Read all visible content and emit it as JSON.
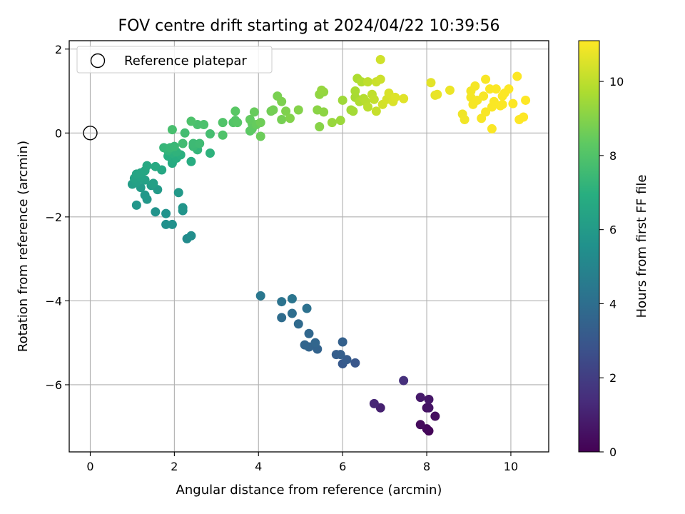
{
  "chart_data": {
    "type": "scatter",
    "title": "FOV centre drift starting at 2024/04/22 10:39:56",
    "xlabel": "Angular distance from reference (arcmin)",
    "ylabel": "Rotation from reference (arcmin)",
    "xlim": [
      -0.5,
      10.9
    ],
    "ylim": [
      -7.6,
      2.2
    ],
    "xticks": [
      0,
      2,
      4,
      6,
      8,
      10
    ],
    "yticks": [
      2,
      0,
      -2,
      -4,
      -6
    ],
    "grid": true,
    "legend": {
      "placement": "top-left",
      "label": "Reference platepar"
    },
    "reference_point": {
      "x": 0,
      "y": 0
    },
    "colorbar": {
      "label": "Hours from first FF file",
      "colormap": "viridis",
      "range": [
        0,
        11.1
      ],
      "ticks": [
        0,
        2,
        4,
        6,
        8,
        10
      ]
    },
    "series": [
      {
        "points": [
          {
            "x": 8.05,
            "y": -7.1,
            "c": 0.1
          },
          {
            "x": 8.0,
            "y": -7.05,
            "c": 0.2
          },
          {
            "x": 7.85,
            "y": -6.95,
            "c": 0.3
          },
          {
            "x": 8.2,
            "y": -6.75,
            "c": 0.4
          },
          {
            "x": 8.0,
            "y": -6.55,
            "c": 0.5
          },
          {
            "x": 8.05,
            "y": -6.55,
            "c": 0.6
          },
          {
            "x": 8.05,
            "y": -6.35,
            "c": 0.7
          },
          {
            "x": 7.85,
            "y": -6.3,
            "c": 0.8
          },
          {
            "x": 6.9,
            "y": -6.55,
            "c": 1.0
          },
          {
            "x": 6.75,
            "y": -6.45,
            "c": 1.2
          },
          {
            "x": 7.45,
            "y": -5.9,
            "c": 1.5
          },
          {
            "x": 6.3,
            "y": -5.48,
            "c": 3.0
          },
          {
            "x": 6.0,
            "y": -5.5,
            "c": 3.1
          },
          {
            "x": 6.1,
            "y": -5.4,
            "c": 3.2
          },
          {
            "x": 5.85,
            "y": -5.28,
            "c": 3.3
          },
          {
            "x": 5.95,
            "y": -5.28,
            "c": 3.35
          },
          {
            "x": 6.0,
            "y": -4.98,
            "c": 3.4
          },
          {
            "x": 5.4,
            "y": -5.15,
            "c": 3.5
          },
          {
            "x": 5.2,
            "y": -5.1,
            "c": 3.55
          },
          {
            "x": 5.1,
            "y": -5.05,
            "c": 3.6
          },
          {
            "x": 5.35,
            "y": -5.0,
            "c": 3.65
          },
          {
            "x": 5.2,
            "y": -4.78,
            "c": 3.7
          },
          {
            "x": 4.95,
            "y": -4.55,
            "c": 3.8
          },
          {
            "x": 4.55,
            "y": -4.4,
            "c": 3.9
          },
          {
            "x": 4.8,
            "y": -4.3,
            "c": 4.0
          },
          {
            "x": 5.15,
            "y": -4.18,
            "c": 4.1
          },
          {
            "x": 4.55,
            "y": -4.02,
            "c": 4.2
          },
          {
            "x": 4.8,
            "y": -3.95,
            "c": 4.3
          },
          {
            "x": 4.05,
            "y": -3.88,
            "c": 4.4
          },
          {
            "x": 2.3,
            "y": -2.52,
            "c": 5.3
          },
          {
            "x": 2.4,
            "y": -2.45,
            "c": 5.4
          },
          {
            "x": 1.8,
            "y": -2.18,
            "c": 5.5
          },
          {
            "x": 1.95,
            "y": -2.18,
            "c": 5.55
          },
          {
            "x": 1.8,
            "y": -1.92,
            "c": 5.6
          },
          {
            "x": 1.55,
            "y": -1.88,
            "c": 5.65
          },
          {
            "x": 2.2,
            "y": -1.85,
            "c": 5.7
          },
          {
            "x": 2.2,
            "y": -1.78,
            "c": 5.75
          },
          {
            "x": 1.1,
            "y": -1.72,
            "c": 5.8
          },
          {
            "x": 1.35,
            "y": -1.58,
            "c": 5.85
          },
          {
            "x": 1.3,
            "y": -1.48,
            "c": 5.9
          },
          {
            "x": 2.1,
            "y": -1.42,
            "c": 5.95
          },
          {
            "x": 1.6,
            "y": -1.35,
            "c": 6.0
          },
          {
            "x": 1.2,
            "y": -1.3,
            "c": 6.05
          },
          {
            "x": 1.45,
            "y": -1.25,
            "c": 6.1
          },
          {
            "x": 1.0,
            "y": -1.22,
            "c": 6.15
          },
          {
            "x": 1.5,
            "y": -1.2,
            "c": 6.2
          },
          {
            "x": 1.1,
            "y": -1.18,
            "c": 6.25
          },
          {
            "x": 1.3,
            "y": -1.12,
            "c": 6.3
          },
          {
            "x": 1.05,
            "y": -1.08,
            "c": 6.35
          },
          {
            "x": 1.2,
            "y": -1.05,
            "c": 6.4
          },
          {
            "x": 1.1,
            "y": -0.98,
            "c": 6.45
          },
          {
            "x": 1.2,
            "y": -0.95,
            "c": 6.5
          },
          {
            "x": 1.3,
            "y": -0.9,
            "c": 6.55
          },
          {
            "x": 1.7,
            "y": -0.88,
            "c": 6.6
          },
          {
            "x": 1.35,
            "y": -0.78,
            "c": 6.65
          },
          {
            "x": 1.55,
            "y": -0.8,
            "c": 6.7
          },
          {
            "x": 1.95,
            "y": -0.72,
            "c": 6.75
          },
          {
            "x": 1.95,
            "y": -0.65,
            "c": 6.8
          },
          {
            "x": 2.4,
            "y": -0.68,
            "c": 6.85
          },
          {
            "x": 2.05,
            "y": -0.6,
            "c": 6.9
          },
          {
            "x": 1.85,
            "y": -0.55,
            "c": 6.95
          },
          {
            "x": 2.15,
            "y": -0.52,
            "c": 7.0
          },
          {
            "x": 1.95,
            "y": -0.48,
            "c": 7.05
          },
          {
            "x": 2.85,
            "y": -0.48,
            "c": 7.1
          },
          {
            "x": 2.05,
            "y": -0.45,
            "c": 7.15
          },
          {
            "x": 1.85,
            "y": -0.42,
            "c": 7.2
          },
          {
            "x": 2.55,
            "y": -0.4,
            "c": 7.25
          },
          {
            "x": 1.75,
            "y": -0.35,
            "c": 7.3
          },
          {
            "x": 1.9,
            "y": -0.35,
            "c": 7.35
          },
          {
            "x": 2.0,
            "y": -0.32,
            "c": 7.4
          },
          {
            "x": 2.45,
            "y": -0.32,
            "c": 7.45
          },
          {
            "x": 2.45,
            "y": -0.25,
            "c": 7.5
          },
          {
            "x": 2.6,
            "y": -0.25,
            "c": 7.55
          },
          {
            "x": 2.2,
            "y": -0.25,
            "c": 7.6
          },
          {
            "x": 2.25,
            "y": 0.0,
            "c": 7.65
          },
          {
            "x": 2.85,
            "y": -0.02,
            "c": 7.7
          },
          {
            "x": 1.95,
            "y": 0.08,
            "c": 7.75
          },
          {
            "x": 2.55,
            "y": 0.2,
            "c": 7.8
          },
          {
            "x": 2.7,
            "y": 0.2,
            "c": 7.85
          },
          {
            "x": 2.4,
            "y": 0.28,
            "c": 7.9
          },
          {
            "x": 3.15,
            "y": -0.05,
            "c": 7.95
          },
          {
            "x": 3.15,
            "y": 0.25,
            "c": 8.0
          },
          {
            "x": 3.4,
            "y": 0.25,
            "c": 8.05
          },
          {
            "x": 3.45,
            "y": 0.3,
            "c": 8.1
          },
          {
            "x": 3.5,
            "y": 0.25,
            "c": 8.15
          },
          {
            "x": 3.45,
            "y": 0.52,
            "c": 8.2
          },
          {
            "x": 3.8,
            "y": 0.05,
            "c": 8.25
          },
          {
            "x": 3.85,
            "y": 0.1,
            "c": 8.3
          },
          {
            "x": 3.85,
            "y": 0.22,
            "c": 8.35
          },
          {
            "x": 3.8,
            "y": 0.32,
            "c": 8.4
          },
          {
            "x": 3.95,
            "y": 0.2,
            "c": 8.45
          },
          {
            "x": 3.9,
            "y": 0.5,
            "c": 8.5
          },
          {
            "x": 4.05,
            "y": -0.08,
            "c": 8.55
          },
          {
            "x": 4.05,
            "y": 0.25,
            "c": 8.6
          },
          {
            "x": 4.3,
            "y": 0.52,
            "c": 8.65
          },
          {
            "x": 4.35,
            "y": 0.55,
            "c": 8.7
          },
          {
            "x": 4.55,
            "y": 0.32,
            "c": 8.75
          },
          {
            "x": 4.45,
            "y": 0.88,
            "c": 8.8
          },
          {
            "x": 4.55,
            "y": 0.75,
            "c": 8.85
          },
          {
            "x": 4.65,
            "y": 0.52,
            "c": 8.9
          },
          {
            "x": 4.75,
            "y": 0.35,
            "c": 8.95
          },
          {
            "x": 4.95,
            "y": 0.55,
            "c": 9.0
          },
          {
            "x": 5.45,
            "y": 0.15,
            "c": 9.05
          },
          {
            "x": 5.4,
            "y": 0.55,
            "c": 9.1
          },
          {
            "x": 5.55,
            "y": 0.5,
            "c": 9.15
          },
          {
            "x": 5.45,
            "y": 0.92,
            "c": 9.2
          },
          {
            "x": 5.55,
            "y": 0.98,
            "c": 9.25
          },
          {
            "x": 5.5,
            "y": 1.02,
            "c": 9.3
          },
          {
            "x": 5.75,
            "y": 0.25,
            "c": 9.35
          },
          {
            "x": 5.95,
            "y": 0.3,
            "c": 9.4
          },
          {
            "x": 6.0,
            "y": 0.78,
            "c": 9.45
          },
          {
            "x": 6.2,
            "y": 0.55,
            "c": 9.5
          },
          {
            "x": 6.25,
            "y": 0.52,
            "c": 9.55
          },
          {
            "x": 6.3,
            "y": 0.85,
            "c": 9.6
          },
          {
            "x": 6.3,
            "y": 1.0,
            "c": 9.65
          },
          {
            "x": 6.35,
            "y": 1.3,
            "c": 9.7
          },
          {
            "x": 6.4,
            "y": 0.75,
            "c": 9.75
          },
          {
            "x": 6.45,
            "y": 1.22,
            "c": 9.8
          },
          {
            "x": 6.5,
            "y": 0.82,
            "c": 9.85
          },
          {
            "x": 6.55,
            "y": 0.75,
            "c": 9.9
          },
          {
            "x": 6.6,
            "y": 0.62,
            "c": 9.95
          },
          {
            "x": 6.6,
            "y": 1.22,
            "c": 10.0
          },
          {
            "x": 6.7,
            "y": 0.92,
            "c": 10.05
          },
          {
            "x": 6.75,
            "y": 0.8,
            "c": 10.1
          },
          {
            "x": 6.8,
            "y": 0.52,
            "c": 10.15
          },
          {
            "x": 6.8,
            "y": 1.22,
            "c": 10.2
          },
          {
            "x": 6.9,
            "y": 1.28,
            "c": 10.25
          },
          {
            "x": 6.9,
            "y": 1.75,
            "c": 10.3
          },
          {
            "x": 6.95,
            "y": 0.68,
            "c": 10.35
          },
          {
            "x": 7.05,
            "y": 0.8,
            "c": 10.4
          },
          {
            "x": 7.1,
            "y": 0.95,
            "c": 10.45
          },
          {
            "x": 7.2,
            "y": 0.75,
            "c": 10.5
          },
          {
            "x": 7.25,
            "y": 0.85,
            "c": 10.55
          },
          {
            "x": 7.45,
            "y": 0.82,
            "c": 10.6
          },
          {
            "x": 8.1,
            "y": 1.2,
            "c": 10.65
          },
          {
            "x": 8.2,
            "y": 0.9,
            "c": 10.7
          },
          {
            "x": 8.25,
            "y": 0.92,
            "c": 10.75
          },
          {
            "x": 8.55,
            "y": 1.02,
            "c": 10.8
          },
          {
            "x": 8.85,
            "y": 0.45,
            "c": 10.85
          },
          {
            "x": 8.9,
            "y": 0.32,
            "c": 10.9
          },
          {
            "x": 9.05,
            "y": 1.0,
            "c": 10.92
          },
          {
            "x": 9.05,
            "y": 0.85,
            "c": 10.94
          },
          {
            "x": 9.15,
            "y": 1.12,
            "c": 10.96
          },
          {
            "x": 9.2,
            "y": 0.78,
            "c": 10.98
          },
          {
            "x": 9.3,
            "y": 0.35,
            "c": 11.0
          },
          {
            "x": 9.35,
            "y": 0.88,
            "c": 11.0
          },
          {
            "x": 9.4,
            "y": 0.5,
            "c": 11.02
          },
          {
            "x": 9.4,
            "y": 1.28,
            "c": 11.02
          },
          {
            "x": 9.5,
            "y": 1.05,
            "c": 11.04
          },
          {
            "x": 9.55,
            "y": 0.62,
            "c": 11.04
          },
          {
            "x": 9.55,
            "y": 0.1,
            "c": 11.05
          },
          {
            "x": 9.6,
            "y": 0.75,
            "c": 11.05
          },
          {
            "x": 9.65,
            "y": 1.05,
            "c": 11.06
          },
          {
            "x": 9.75,
            "y": 0.65,
            "c": 11.06
          },
          {
            "x": 9.8,
            "y": 0.68,
            "c": 11.07
          },
          {
            "x": 9.8,
            "y": 0.88,
            "c": 11.07
          },
          {
            "x": 9.85,
            "y": 0.95,
            "c": 11.08
          },
          {
            "x": 9.95,
            "y": 1.05,
            "c": 11.08
          },
          {
            "x": 10.05,
            "y": 0.7,
            "c": 11.09
          },
          {
            "x": 10.15,
            "y": 1.35,
            "c": 11.09
          },
          {
            "x": 10.2,
            "y": 0.32,
            "c": 11.1
          },
          {
            "x": 10.3,
            "y": 0.38,
            "c": 11.1
          },
          {
            "x": 10.35,
            "y": 0.78,
            "c": 11.1
          },
          {
            "x": 9.1,
            "y": 0.68,
            "c": 10.97
          }
        ]
      }
    ]
  }
}
